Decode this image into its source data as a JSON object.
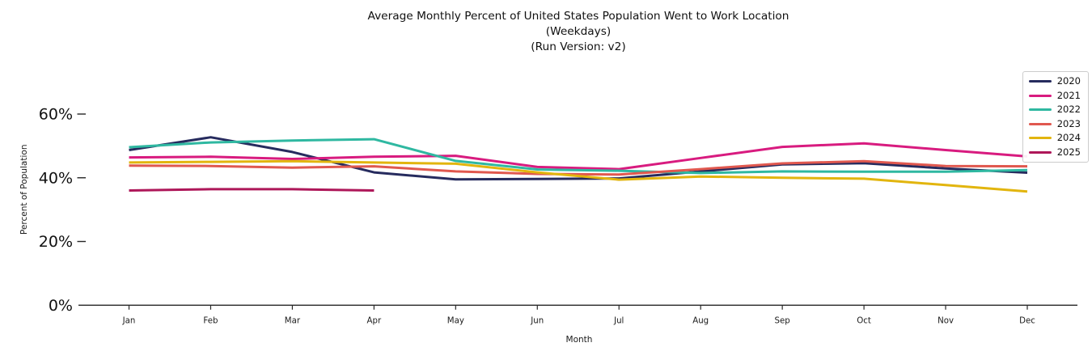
{
  "title": {
    "line1": "Average Monthly Percent of United States Population Went to Work Location",
    "line2": "(Weekdays)",
    "line3": "(Run Version: v2)"
  },
  "chart_data": {
    "type": "line",
    "x": [
      "Jan",
      "Feb",
      "Mar",
      "Apr",
      "May",
      "Jun",
      "Jul",
      "Aug",
      "Sep",
      "Oct",
      "Nov",
      "Dec"
    ],
    "xlabel": "Month",
    "ylabel": "Percent of Population",
    "ylim": [
      0,
      62
    ],
    "yticks": [
      {
        "value": 0,
        "label": "0%"
      },
      {
        "value": 20,
        "label": "20%"
      },
      {
        "value": 40,
        "label": "40%"
      },
      {
        "value": 60,
        "label": "60%"
      }
    ],
    "grid": false,
    "legend_position": "upper right",
    "axis_color": "#262626",
    "series": [
      {
        "name": "2020",
        "color": "#262b5e",
        "values": [
          48.7,
          52.7,
          48.1,
          41.7,
          39.5,
          39.6,
          39.8,
          42.0,
          44.2,
          44.6,
          42.9,
          41.6
        ]
      },
      {
        "name": "2021",
        "color": "#d81b7f",
        "values": [
          46.4,
          46.6,
          45.9,
          46.6,
          46.9,
          43.4,
          42.7,
          46.2,
          49.7,
          50.8,
          48.7,
          46.7
        ]
      },
      {
        "name": "2022",
        "color": "#2fb8a1",
        "values": [
          49.6,
          51.1,
          51.7,
          52.1,
          45.3,
          42.6,
          42.2,
          41.5,
          42.0,
          41.9,
          41.9,
          42.4
        ]
      },
      {
        "name": "2023",
        "color": "#e0584f",
        "values": [
          43.8,
          43.7,
          43.2,
          43.6,
          42.0,
          41.2,
          41.0,
          42.7,
          44.5,
          45.2,
          43.7,
          43.6
        ]
      },
      {
        "name": "2024",
        "color": "#e2b50e",
        "values": [
          44.8,
          45.0,
          45.2,
          44.8,
          44.4,
          41.7,
          39.4,
          40.4,
          40.0,
          39.7,
          37.7,
          35.7
        ]
      },
      {
        "name": "2025",
        "color": "#ae1759",
        "values": [
          36.0,
          36.4,
          36.4,
          36.0,
          null,
          null,
          null,
          null,
          null,
          null,
          null,
          null
        ]
      }
    ]
  }
}
